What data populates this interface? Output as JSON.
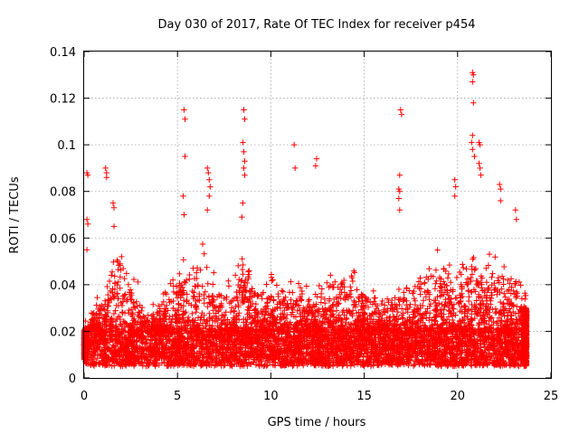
{
  "chart_data": {
    "type": "scatter",
    "title": "Day 030 of 2017, Rate Of TEC Index for receiver p454",
    "xlabel": "GPS time / hours",
    "ylabel": "ROTI / TECUs",
    "xlim": [
      0,
      25
    ],
    "ylim": [
      0,
      0.14
    ],
    "x_ticks": [
      0,
      5,
      10,
      15,
      20,
      25
    ],
    "x_tick_labels": [
      "0",
      "5",
      "10",
      "15",
      "20",
      "25"
    ],
    "y_ticks": [
      0,
      0.02,
      0.04,
      0.06,
      0.08,
      0.1,
      0.12,
      0.14
    ],
    "y_tick_labels": [
      "0",
      "0.02",
      "0.04",
      "0.06",
      "0.08",
      "0.1",
      "0.12",
      "0.14"
    ],
    "grid": true,
    "marker": "plus",
    "series_color": "#ff0000",
    "data_extent_hours": [
      0,
      23.7
    ],
    "dense_band_range": [
      0.005,
      0.02
    ],
    "envelope": [
      {
        "x": 0.0,
        "y": 0.02
      },
      {
        "x": 0.5,
        "y": 0.03
      },
      {
        "x": 1.0,
        "y": 0.035
      },
      {
        "x": 1.5,
        "y": 0.05
      },
      {
        "x": 2.0,
        "y": 0.055
      },
      {
        "x": 2.5,
        "y": 0.05
      },
      {
        "x": 3.0,
        "y": 0.035
      },
      {
        "x": 3.5,
        "y": 0.03
      },
      {
        "x": 4.0,
        "y": 0.03
      },
      {
        "x": 4.5,
        "y": 0.035
      },
      {
        "x": 5.0,
        "y": 0.045
      },
      {
        "x": 5.5,
        "y": 0.05
      },
      {
        "x": 6.0,
        "y": 0.045
      },
      {
        "x": 6.5,
        "y": 0.055
      },
      {
        "x": 7.0,
        "y": 0.04
      },
      {
        "x": 7.5,
        "y": 0.035
      },
      {
        "x": 8.0,
        "y": 0.04
      },
      {
        "x": 8.5,
        "y": 0.055
      },
      {
        "x": 9.0,
        "y": 0.04
      },
      {
        "x": 9.5,
        "y": 0.035
      },
      {
        "x": 10.0,
        "y": 0.045
      },
      {
        "x": 10.5,
        "y": 0.04
      },
      {
        "x": 11.0,
        "y": 0.045
      },
      {
        "x": 11.5,
        "y": 0.04
      },
      {
        "x": 12.0,
        "y": 0.035
      },
      {
        "x": 12.5,
        "y": 0.035
      },
      {
        "x": 13.0,
        "y": 0.04
      },
      {
        "x": 13.5,
        "y": 0.045
      },
      {
        "x": 14.0,
        "y": 0.05
      },
      {
        "x": 14.5,
        "y": 0.045
      },
      {
        "x": 15.0,
        "y": 0.04
      },
      {
        "x": 15.5,
        "y": 0.035
      },
      {
        "x": 16.0,
        "y": 0.03
      },
      {
        "x": 16.5,
        "y": 0.035
      },
      {
        "x": 17.0,
        "y": 0.04
      },
      {
        "x": 17.5,
        "y": 0.035
      },
      {
        "x": 18.0,
        "y": 0.04
      },
      {
        "x": 18.5,
        "y": 0.045
      },
      {
        "x": 19.0,
        "y": 0.05
      },
      {
        "x": 19.5,
        "y": 0.05
      },
      {
        "x": 20.0,
        "y": 0.045
      },
      {
        "x": 20.5,
        "y": 0.05
      },
      {
        "x": 21.0,
        "y": 0.055
      },
      {
        "x": 21.5,
        "y": 0.05
      },
      {
        "x": 22.0,
        "y": 0.05
      },
      {
        "x": 22.5,
        "y": 0.045
      },
      {
        "x": 23.0,
        "y": 0.045
      },
      {
        "x": 23.7,
        "y": 0.035
      }
    ],
    "outliers": [
      {
        "x": 0.15,
        "y": 0.088
      },
      {
        "x": 0.2,
        "y": 0.087
      },
      {
        "x": 0.15,
        "y": 0.068
      },
      {
        "x": 0.2,
        "y": 0.066
      },
      {
        "x": 0.15,
        "y": 0.055
      },
      {
        "x": 1.15,
        "y": 0.09
      },
      {
        "x": 1.2,
        "y": 0.088
      },
      {
        "x": 1.2,
        "y": 0.086
      },
      {
        "x": 1.55,
        "y": 0.075
      },
      {
        "x": 1.6,
        "y": 0.073
      },
      {
        "x": 1.6,
        "y": 0.065
      },
      {
        "x": 5.35,
        "y": 0.115
      },
      {
        "x": 5.4,
        "y": 0.111
      },
      {
        "x": 5.4,
        "y": 0.095
      },
      {
        "x": 5.3,
        "y": 0.078
      },
      {
        "x": 5.35,
        "y": 0.07
      },
      {
        "x": 6.6,
        "y": 0.09
      },
      {
        "x": 6.65,
        "y": 0.088
      },
      {
        "x": 6.7,
        "y": 0.085
      },
      {
        "x": 6.75,
        "y": 0.082
      },
      {
        "x": 6.7,
        "y": 0.078
      },
      {
        "x": 6.6,
        "y": 0.072
      },
      {
        "x": 8.55,
        "y": 0.115
      },
      {
        "x": 8.6,
        "y": 0.111
      },
      {
        "x": 8.5,
        "y": 0.101
      },
      {
        "x": 8.55,
        "y": 0.097
      },
      {
        "x": 8.6,
        "y": 0.093
      },
      {
        "x": 8.55,
        "y": 0.09
      },
      {
        "x": 8.6,
        "y": 0.087
      },
      {
        "x": 8.5,
        "y": 0.075
      },
      {
        "x": 8.45,
        "y": 0.069
      },
      {
        "x": 11.25,
        "y": 0.1
      },
      {
        "x": 11.3,
        "y": 0.09
      },
      {
        "x": 12.45,
        "y": 0.094
      },
      {
        "x": 12.4,
        "y": 0.091
      },
      {
        "x": 16.95,
        "y": 0.115
      },
      {
        "x": 17.0,
        "y": 0.113
      },
      {
        "x": 16.9,
        "y": 0.087
      },
      {
        "x": 16.85,
        "y": 0.081
      },
      {
        "x": 16.9,
        "y": 0.08
      },
      {
        "x": 16.85,
        "y": 0.077
      },
      {
        "x": 16.9,
        "y": 0.072
      },
      {
        "x": 19.85,
        "y": 0.085
      },
      {
        "x": 19.9,
        "y": 0.082
      },
      {
        "x": 19.85,
        "y": 0.078
      },
      {
        "x": 20.8,
        "y": 0.131
      },
      {
        "x": 20.85,
        "y": 0.13
      },
      {
        "x": 20.8,
        "y": 0.127
      },
      {
        "x": 20.85,
        "y": 0.118
      },
      {
        "x": 20.8,
        "y": 0.104
      },
      {
        "x": 20.75,
        "y": 0.101
      },
      {
        "x": 20.8,
        "y": 0.098
      },
      {
        "x": 20.9,
        "y": 0.095
      },
      {
        "x": 21.15,
        "y": 0.101
      },
      {
        "x": 21.2,
        "y": 0.1
      },
      {
        "x": 21.15,
        "y": 0.092
      },
      {
        "x": 21.2,
        "y": 0.09
      },
      {
        "x": 21.25,
        "y": 0.087
      },
      {
        "x": 22.25,
        "y": 0.083
      },
      {
        "x": 22.3,
        "y": 0.081
      },
      {
        "x": 22.3,
        "y": 0.076
      },
      {
        "x": 23.1,
        "y": 0.072
      },
      {
        "x": 23.15,
        "y": 0.068
      }
    ]
  }
}
